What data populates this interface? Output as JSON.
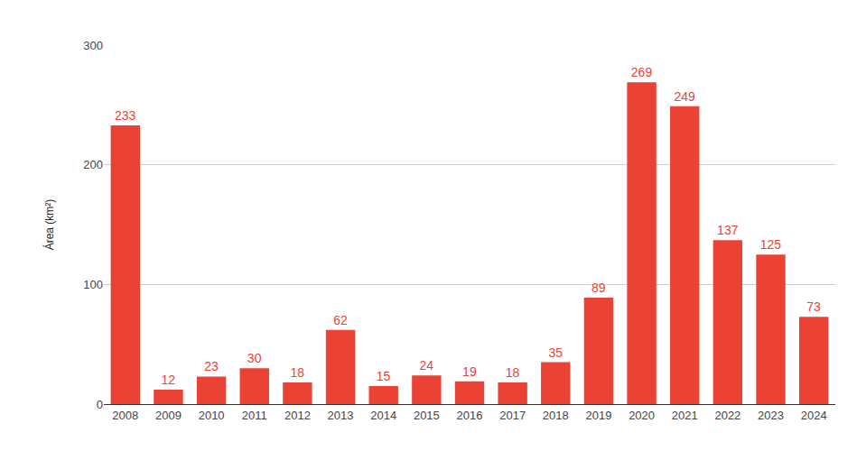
{
  "chart_data": {
    "type": "bar",
    "y_label": "Área (km²)",
    "categories": [
      "2008",
      "2009",
      "2010",
      "2011",
      "2012",
      "2013",
      "2014",
      "2015",
      "2016",
      "2017",
      "2018",
      "2019",
      "2020",
      "2021",
      "2022",
      "2023",
      "2024"
    ],
    "values": [
      233,
      12,
      23,
      30,
      18,
      62,
      15,
      24,
      19,
      18,
      35,
      89,
      269,
      249,
      137,
      125,
      73
    ],
    "color": "#ea4335",
    "ylim": [
      0,
      300
    ],
    "yticks": [
      0,
      100,
      200,
      300
    ],
    "grid": true,
    "data_labels": true
  }
}
